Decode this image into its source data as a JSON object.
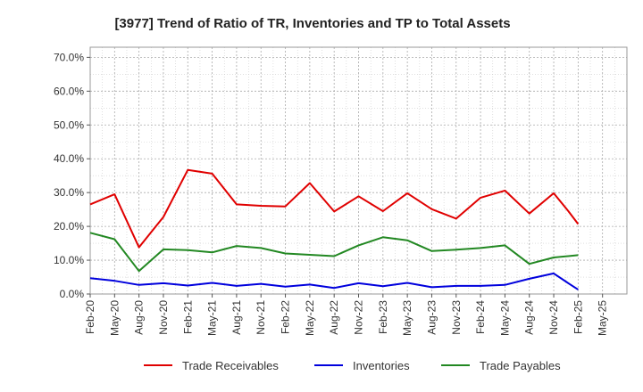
{
  "chart_data": {
    "type": "line",
    "title": "[3977]  Trend of Ratio of TR, Inventories and TP to Total Assets",
    "xlabel": "",
    "ylabel": "",
    "x_ticks": [
      "Feb-20",
      "May-20",
      "Aug-20",
      "Nov-20",
      "Feb-21",
      "May-21",
      "Aug-21",
      "Nov-21",
      "Feb-22",
      "May-22",
      "Aug-22",
      "Nov-22",
      "Feb-23",
      "May-23",
      "Aug-23",
      "Nov-23",
      "Feb-24",
      "May-24",
      "Aug-24",
      "Nov-24",
      "Feb-25",
      "May-25"
    ],
    "y_ticks": [
      "0.0%",
      "10.0%",
      "20.0%",
      "30.0%",
      "40.0%",
      "50.0%",
      "60.0%",
      "70.0%"
    ],
    "ylim": [
      0,
      73
    ],
    "grid": true,
    "legend_position": "bottom",
    "x_index_range": [
      0,
      21
    ],
    "series": [
      {
        "name": "Trade Receivables",
        "color": "#e00000",
        "x": [
          0,
          1,
          2,
          3,
          4,
          5,
          6,
          7,
          8,
          9,
          10,
          11,
          12,
          13,
          14,
          15,
          16,
          17,
          18,
          19,
          19.6,
          20
        ],
        "values": [
          26.5,
          29.5,
          13.8,
          22.8,
          36.7,
          35.6,
          26.5,
          26.1,
          25.9,
          32.8,
          24.4,
          28.9,
          24.5,
          29.8,
          25.1,
          22.3,
          28.5,
          30.6,
          23.8,
          29.8,
          24.5,
          20.7
        ]
      },
      {
        "name": "Inventories",
        "color": "#0000dd",
        "x": [
          0,
          1,
          2,
          3,
          4,
          5,
          6,
          7,
          8,
          9,
          10,
          11,
          12,
          13,
          14,
          15,
          16,
          17,
          18,
          19,
          19.6,
          20
        ],
        "values": [
          4.7,
          3.9,
          2.7,
          3.2,
          2.5,
          3.3,
          2.4,
          3.0,
          2.2,
          2.8,
          1.8,
          3.2,
          2.3,
          3.3,
          2.0,
          2.4,
          2.4,
          2.7,
          4.5,
          6.1,
          3.2,
          1.3
        ]
      },
      {
        "name": "Trade Payables",
        "color": "#228822",
        "x": [
          0,
          1,
          2,
          3,
          4,
          5,
          6,
          7,
          8,
          9,
          10,
          11,
          12,
          13,
          14,
          15,
          16,
          17,
          18,
          19,
          20
        ],
        "values": [
          18.1,
          16.2,
          6.8,
          13.2,
          13.0,
          12.3,
          14.2,
          13.6,
          12.0,
          11.6,
          11.2,
          14.4,
          16.8,
          15.9,
          12.7,
          13.1,
          13.6,
          14.4,
          8.9,
          10.8,
          11.5
        ]
      }
    ]
  }
}
